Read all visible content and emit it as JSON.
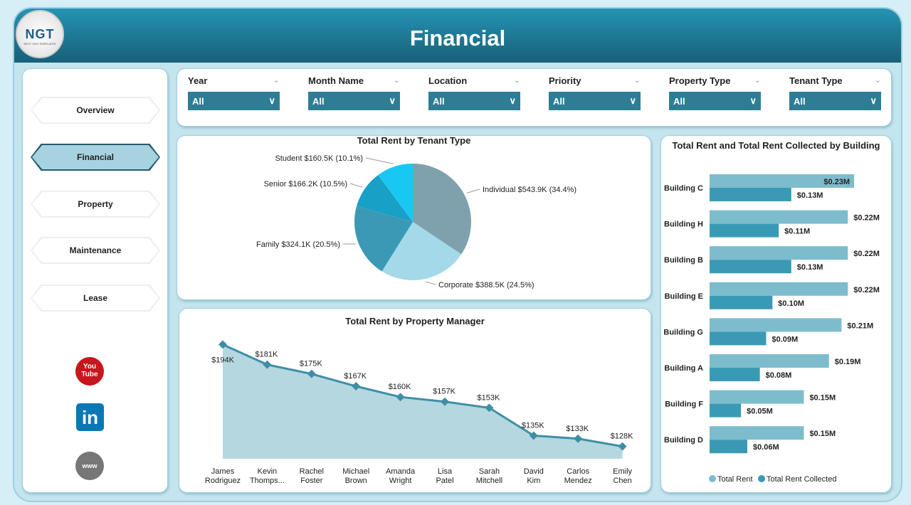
{
  "header": {
    "title": "Financial",
    "logo_text": "NGT",
    "logo_sub": "NEXT GEN TEMPLATES"
  },
  "nav": [
    {
      "label": "Overview",
      "active": false
    },
    {
      "label": "Financial",
      "active": true
    },
    {
      "label": "Property",
      "active": false
    },
    {
      "label": "Maintenance",
      "active": false
    },
    {
      "label": "Lease",
      "active": false
    }
  ],
  "social": {
    "youtube": "You Tube",
    "linkedin": "in",
    "web": "www"
  },
  "filters": [
    {
      "label": "Year",
      "value": "All"
    },
    {
      "label": "Month Name",
      "value": "All"
    },
    {
      "label": "Location",
      "value": "All"
    },
    {
      "label": "Priority",
      "value": "All"
    },
    {
      "label": "Property Type",
      "value": "All"
    },
    {
      "label": "Tenant Type",
      "value": "All"
    }
  ],
  "chart_data": [
    {
      "type": "pie",
      "title": "Total Rent by Tenant Type",
      "slices": [
        {
          "label": "Individual $543.9K (34.4%)",
          "value": 543.9,
          "color": "#7fa1ad"
        },
        {
          "label": "Corporate $388.5K (24.5%)",
          "value": 388.5,
          "color": "#a3d9e8"
        },
        {
          "label": "Family $324.1K (20.5%)",
          "value": 324.1,
          "color": "#3a9ab5"
        },
        {
          "label": "Senior $166.2K (10.5%)",
          "value": 166.2,
          "color": "#18a0c6"
        },
        {
          "label": "Student $160.5K (10.1%)",
          "value": 160.5,
          "color": "#19c8f2"
        }
      ]
    },
    {
      "type": "area",
      "title": "Total Rent by Property Manager",
      "categories": [
        "James Rodriguez",
        "Kevin Thomps...",
        "Rachel Foster",
        "Michael Brown",
        "Amanda Wright",
        "Lisa Patel",
        "Sarah Mitchell",
        "David Kim",
        "Carlos Mendez",
        "Emily Chen"
      ],
      "values": [
        194,
        181,
        175,
        167,
        160,
        157,
        153,
        135,
        133,
        128
      ],
      "labels": [
        "$194K",
        "$181K",
        "$175K",
        "$167K",
        "$160K",
        "$157K",
        "$153K",
        "$135K",
        "$133K",
        "$128K"
      ],
      "color": "#3f8ea6",
      "fill": "#b5d7e0"
    },
    {
      "type": "bar",
      "orientation": "horizontal",
      "title": "Total Rent and Total Rent Collected by Building",
      "categories": [
        "Building C",
        "Building H",
        "Building B",
        "Building E",
        "Building G",
        "Building A",
        "Building F",
        "Building D"
      ],
      "series": [
        {
          "name": "Total Rent",
          "color": "#7dbccd",
          "values": [
            0.23,
            0.22,
            0.22,
            0.22,
            0.21,
            0.19,
            0.15,
            0.15
          ],
          "labels": [
            "$0.23M",
            "$0.22M",
            "$0.22M",
            "$0.22M",
            "$0.21M",
            "$0.19M",
            "$0.15M",
            "$0.15M"
          ]
        },
        {
          "name": "Total Rent Collected",
          "color": "#3a9ab5",
          "values": [
            0.13,
            0.11,
            0.13,
            0.1,
            0.09,
            0.08,
            0.05,
            0.06
          ],
          "labels": [
            "$0.13M",
            "$0.11M",
            "$0.13M",
            "$0.10M",
            "$0.09M",
            "$0.08M",
            "$0.05M",
            "$0.06M"
          ]
        }
      ],
      "legend": "bottom"
    }
  ]
}
